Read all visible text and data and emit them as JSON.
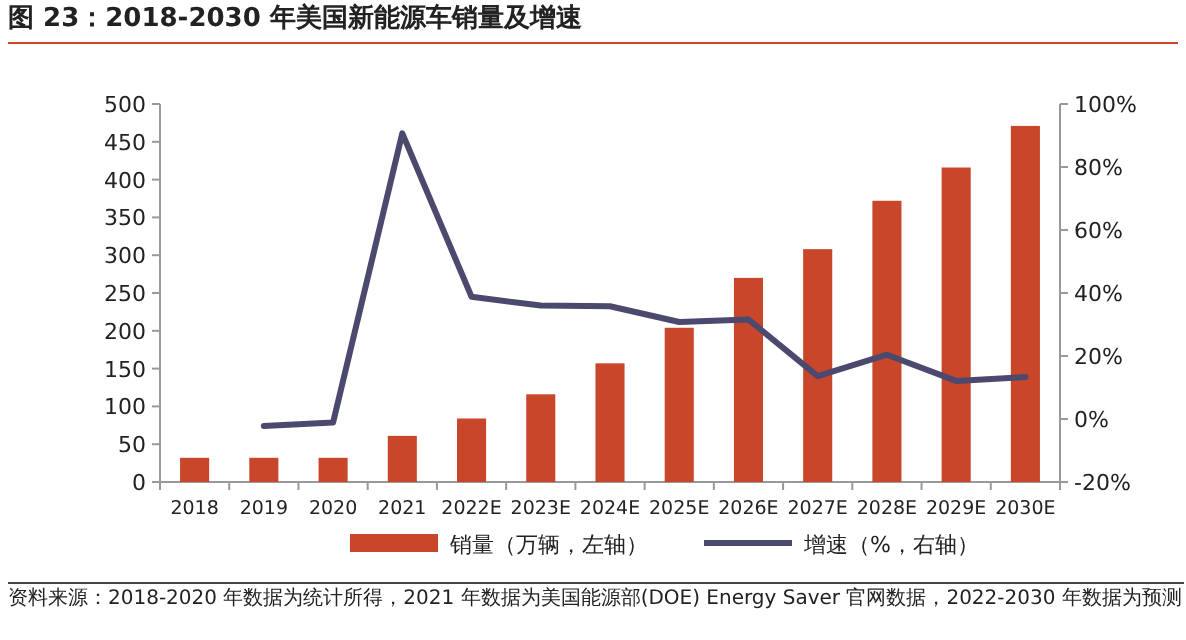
{
  "chart_data": {
    "type": "bar",
    "title": "图 23：2018-2030 年美国新能源车销量及增速",
    "categories": [
      "2018",
      "2019",
      "2020",
      "2021",
      "2022E",
      "2023E",
      "2024E",
      "2025E",
      "2026E",
      "2027E",
      "2028E",
      "2029E",
      "2030E"
    ],
    "series": [
      {
        "name": "销量（万辆，左轴）",
        "color": "#c8462a",
        "values": [
          32,
          32,
          32,
          61,
          84,
          116,
          157,
          204,
          270,
          308,
          372,
          416,
          471
        ]
      },
      {
        "name": "增速（%，右轴）",
        "type": "line",
        "axis": "y2",
        "color": "#4b4a6e",
        "values": [
          null,
          -2.2,
          -1.1,
          90.7,
          38.8,
          36,
          35.8,
          30.8,
          31.6,
          13.6,
          20.4,
          12.1,
          13.3
        ]
      }
    ],
    "ylim": [
      0,
      500
    ],
    "yticks": [
      0,
      50,
      100,
      150,
      200,
      250,
      300,
      350,
      400,
      450,
      500
    ],
    "y2lim": [
      -20,
      100
    ],
    "y2ticks": [
      {
        "value": -20,
        "label": "-20%"
      },
      {
        "value": 0,
        "label": "0%"
      },
      {
        "value": 20,
        "label": "20%"
      },
      {
        "value": 40,
        "label": "40%"
      },
      {
        "value": 60,
        "label": "60%"
      },
      {
        "value": 80,
        "label": "80%"
      },
      {
        "value": 100,
        "label": "100%"
      }
    ],
    "legend": "bottom",
    "annotations": [
      "资料来源：2018-2020 年数据为统计所得，2021 年数据为美国能源部(DOE) Energy Saver 官网数据，2022-2030 年数据为预测"
    ]
  }
}
